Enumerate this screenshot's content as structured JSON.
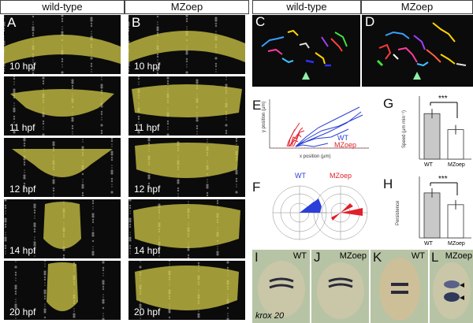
{
  "headers": {
    "wt_left": "wild-type",
    "mz_left": "MZoep",
    "wt_right": "wild-type",
    "mz_right": "MZoep"
  },
  "panel_letters": {
    "A": "A",
    "B": "B",
    "C": "C",
    "D": "D",
    "E": "E",
    "F": "F",
    "G": "G",
    "H": "H",
    "I": "I",
    "J": "J",
    "K": "K",
    "L": "L"
  },
  "timepoints": [
    "10 hpf",
    "11 hpf",
    "12 hpf",
    "14 hpf",
    "20 hpf"
  ],
  "chart_e": {
    "ylabel": "y position (μm)",
    "xlabel": "x position (μm)",
    "legend_wt": "WT",
    "legend_mz": "MZoep",
    "wt_color": "#2a3fd8",
    "mz_color": "#e0202a"
  },
  "chart_f": {
    "title_wt": "WT",
    "title_mz": "MZoep",
    "subtitle": "Angle frequency distribution"
  },
  "chart_g": {
    "ylabel": "Speed (μm min⁻¹)",
    "categories": [
      "WT",
      "MZoep"
    ],
    "values": [
      0.85,
      0.55
    ],
    "significance": "***"
  },
  "chart_h": {
    "ylabel": "Persistence",
    "categories": [
      "WT",
      "MZoep"
    ],
    "values": [
      0.84,
      0.62
    ],
    "significance": "***"
  },
  "embryo_labels": {
    "I": "WT",
    "J": "MZoep",
    "K": "WT",
    "L": "MZoep",
    "gene": "krox 20"
  },
  "colors": {
    "overlay": "#d8d04a",
    "embryo_bg": "#b9c5a6",
    "stain": "#2a2a3a"
  }
}
